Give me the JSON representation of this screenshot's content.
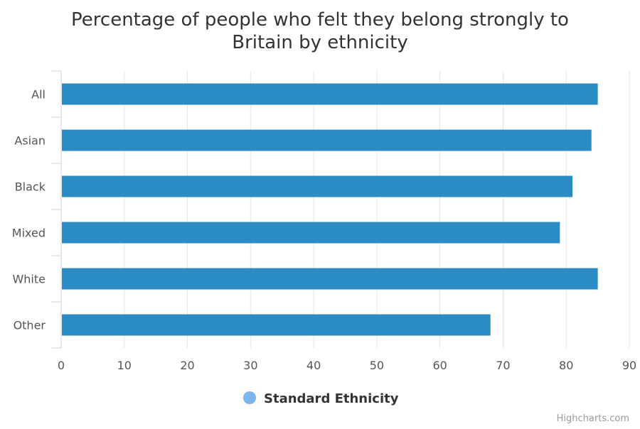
{
  "chart_data": {
    "type": "bar",
    "orientation": "horizontal",
    "title_lines": [
      "Percentage of people who felt they belong strongly to",
      "Britain by ethnicity"
    ],
    "categories": [
      "All",
      "Asian",
      "Black",
      "Mixed",
      "White",
      "Other"
    ],
    "series": [
      {
        "name": "Standard Ethnicity",
        "values": [
          85,
          84,
          81,
          79,
          85,
          68
        ]
      }
    ],
    "xlim": [
      0,
      90
    ],
    "xticks": [
      0,
      10,
      20,
      30,
      40,
      50,
      60,
      70,
      80,
      90
    ],
    "grid": true,
    "legend_position": "bottom-center",
    "colors": {
      "bar": "#2b8cc4",
      "legend_marker": "#7cb5ec",
      "grid": "#e6e6e6",
      "axis": "#ccd6eb"
    }
  },
  "credits": "Highcharts.com"
}
